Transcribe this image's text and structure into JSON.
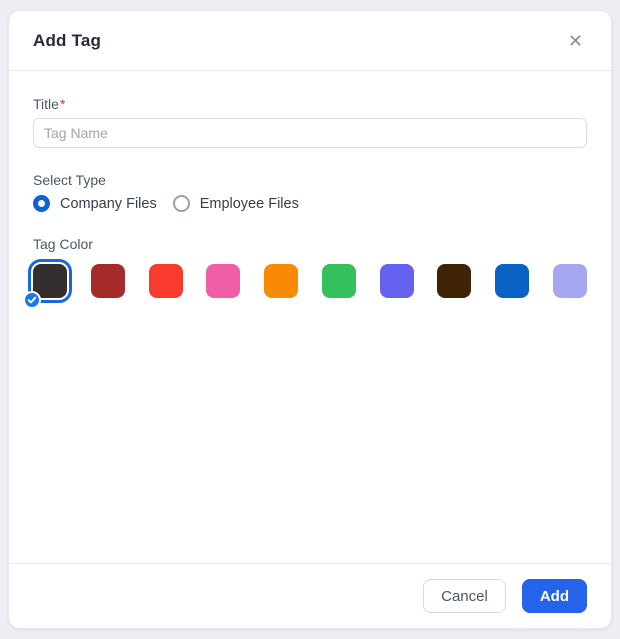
{
  "modal": {
    "title": "Add Tag",
    "close_icon_glyph": "✕"
  },
  "form": {
    "title_label": "Title",
    "required_marker": "*",
    "title_input": {
      "value": "",
      "placeholder": "Tag Name"
    },
    "select_type_label": "Select Type",
    "type_options": [
      {
        "label": "Company Files",
        "selected": true
      },
      {
        "label": "Employee Files",
        "selected": false
      }
    ],
    "tag_color_label": "Tag Color",
    "colors": [
      {
        "name": "charcoal",
        "hex": "#342E2E",
        "selected": true
      },
      {
        "name": "brick-red",
        "hex": "#A52A2A",
        "selected": false
      },
      {
        "name": "red",
        "hex": "#F93A2F",
        "selected": false
      },
      {
        "name": "pink",
        "hex": "#EF5FA7",
        "selected": false
      },
      {
        "name": "orange",
        "hex": "#F98A05",
        "selected": false
      },
      {
        "name": "green",
        "hex": "#34C05A",
        "selected": false
      },
      {
        "name": "purple",
        "hex": "#6562EF",
        "selected": false
      },
      {
        "name": "brown",
        "hex": "#3E2405",
        "selected": false
      },
      {
        "name": "blue",
        "hex": "#0A62C4",
        "selected": false
      },
      {
        "name": "lavender",
        "hex": "#A5A8F0",
        "selected": false
      }
    ]
  },
  "footer": {
    "cancel_label": "Cancel",
    "add_label": "Add"
  },
  "accents": {
    "primary_blue": "#2563EB",
    "selection_ring_blue": "#1568E3",
    "radio_blue": "#0B63D6",
    "badge_blue": "#1779E9",
    "required_red": "#E02D3C"
  }
}
